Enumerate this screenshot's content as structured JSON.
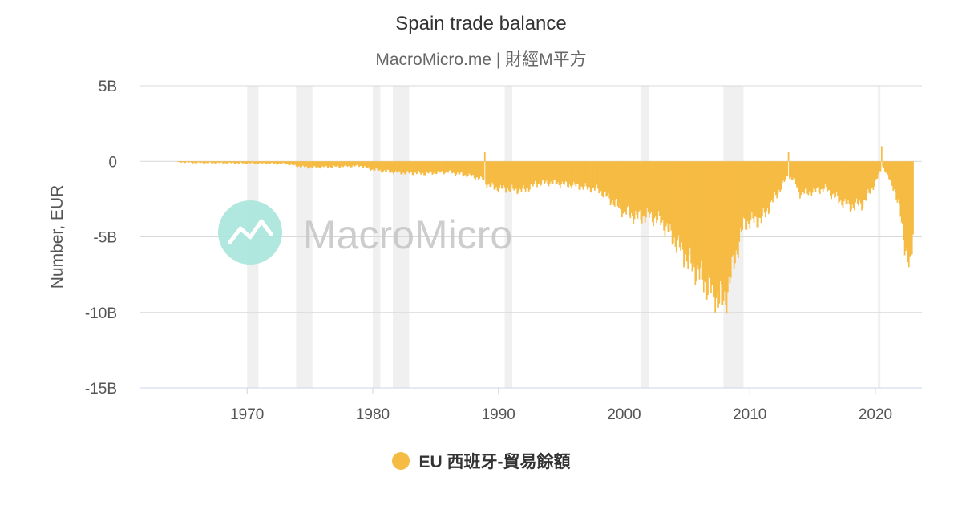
{
  "header": {
    "title": "Spain trade balance",
    "subtitle": "MacroMicro.me | 財經M平方"
  },
  "watermark": {
    "text": "MacroMicro",
    "icon": "macromicro-logo-icon"
  },
  "colors": {
    "series": "#f6bb43",
    "recession": "#f0f0f0",
    "grid": "#d9d9d9",
    "logo": "#a8e6dc"
  },
  "legend": {
    "label": "EU 西班牙-貿易餘額"
  },
  "chart_data": {
    "type": "bar",
    "title": "Spain trade balance",
    "ylabel": "Number, EUR",
    "ylim": [
      -15000000000,
      5000000000
    ],
    "y_ticks": [
      {
        "value": 5000000000,
        "label": "5B"
      },
      {
        "value": 0,
        "label": "0"
      },
      {
        "value": -5000000000,
        "label": "-5B"
      },
      {
        "value": -10000000000,
        "label": "-10B"
      },
      {
        "value": -15000000000,
        "label": "-15B"
      }
    ],
    "xlim": [
      1961.5,
      2023.7
    ],
    "x_ticks": [
      1970,
      1980,
      1990,
      2000,
      2010,
      2020
    ],
    "recessions": [
      [
        1970.0,
        1970.9
      ],
      [
        1973.9,
        1975.2
      ],
      [
        1980.0,
        1980.6
      ],
      [
        1981.6,
        1982.9
      ],
      [
        1990.5,
        1991.1
      ],
      [
        2001.3,
        2002.0
      ],
      [
        2007.9,
        2009.5
      ],
      [
        2020.2,
        2020.4
      ]
    ],
    "series": [
      {
        "name": "EU 西班牙-貿易餘額",
        "anchors": [
          [
            1964.5,
            -0.05
          ],
          [
            1966,
            -0.1
          ],
          [
            1970,
            -0.12
          ],
          [
            1973,
            -0.15
          ],
          [
            1974,
            -0.32
          ],
          [
            1975,
            -0.4
          ],
          [
            1977,
            -0.35
          ],
          [
            1979,
            -0.3
          ],
          [
            1980,
            -0.55
          ],
          [
            1982,
            -0.75
          ],
          [
            1984,
            -0.8
          ],
          [
            1986,
            -0.7
          ],
          [
            1988,
            -1.0
          ],
          [
            1988.8,
            -1.2
          ],
          [
            1989.2,
            -1.6
          ],
          [
            1990,
            -1.8
          ],
          [
            1992,
            -1.9
          ],
          [
            1993,
            -1.5
          ],
          [
            1994,
            -1.4
          ],
          [
            1996,
            -1.6
          ],
          [
            1998,
            -1.9
          ],
          [
            1999,
            -2.6
          ],
          [
            2000,
            -3.3
          ],
          [
            2001,
            -3.7
          ],
          [
            2002,
            -3.6
          ],
          [
            2003,
            -4.0
          ],
          [
            2004,
            -5.2
          ],
          [
            2005,
            -6.5
          ],
          [
            2006,
            -7.5
          ],
          [
            2007,
            -8.6
          ],
          [
            2008,
            -9.3
          ],
          [
            2008.8,
            -6.5
          ],
          [
            2009.5,
            -4.2
          ],
          [
            2010,
            -4.0
          ],
          [
            2011,
            -3.8
          ],
          [
            2012,
            -2.4
          ],
          [
            2013,
            -1.0
          ],
          [
            2013.5,
            -1.2
          ],
          [
            2014,
            -2.1
          ],
          [
            2015,
            -2.0
          ],
          [
            2016,
            -1.8
          ],
          [
            2017,
            -2.5
          ],
          [
            2018,
            -3.0
          ],
          [
            2019,
            -2.8
          ],
          [
            2020,
            -1.4
          ],
          [
            2020.6,
            -0.3
          ],
          [
            2021,
            -1.0
          ],
          [
            2021.5,
            -1.8
          ],
          [
            2022,
            -3.5
          ],
          [
            2022.5,
            -6.3
          ],
          [
            2022.8,
            -7.4
          ],
          [
            2023,
            -4.5
          ]
        ],
        "spikes": [
          [
            1988.9,
            0.6
          ],
          [
            2013.1,
            0.6
          ],
          [
            2020.5,
            1.0
          ]
        ]
      }
    ]
  }
}
